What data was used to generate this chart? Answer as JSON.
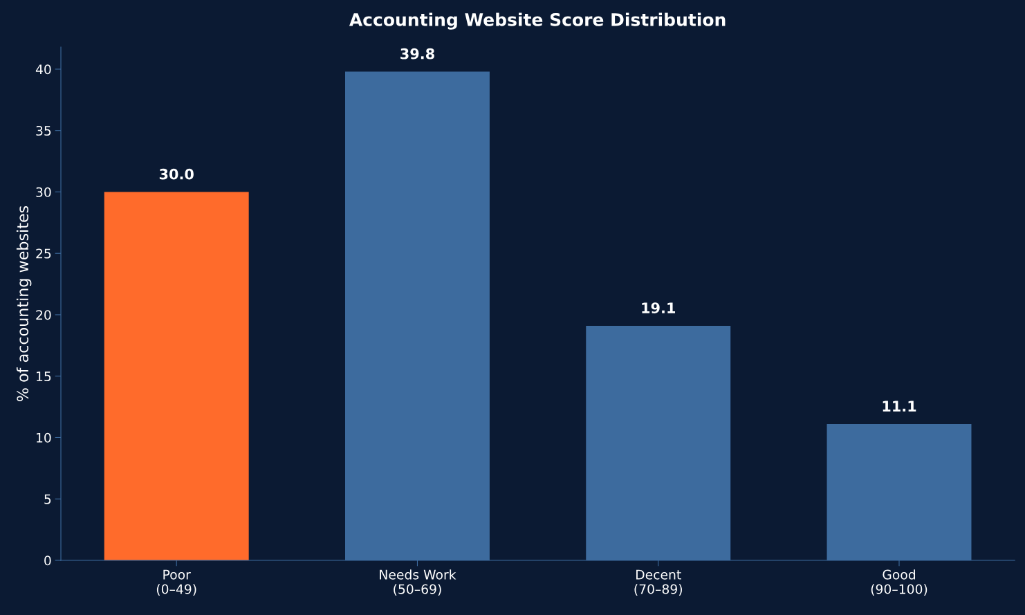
{
  "chart_data": {
    "type": "bar",
    "title": "Accounting Website Score Distribution",
    "ylabel": "% of accounting websites",
    "categories": [
      "Poor\n(0–49)",
      "Needs Work\n(50–69)",
      "Decent\n(70–89)",
      "Good\n(90–100)"
    ],
    "values": [
      30.0,
      39.8,
      19.1,
      11.1
    ],
    "colors": [
      "#ff6b2b",
      "#3d6b9e",
      "#3d6b9e",
      "#3d6b9e"
    ],
    "value_labels": [
      "30.0",
      "39.8",
      "19.1",
      "11.1"
    ],
    "ylim": [
      0,
      41.8
    ],
    "yticks": [
      0,
      5,
      10,
      15,
      20,
      25,
      30,
      35,
      40
    ],
    "grid": false,
    "legend": false
  }
}
